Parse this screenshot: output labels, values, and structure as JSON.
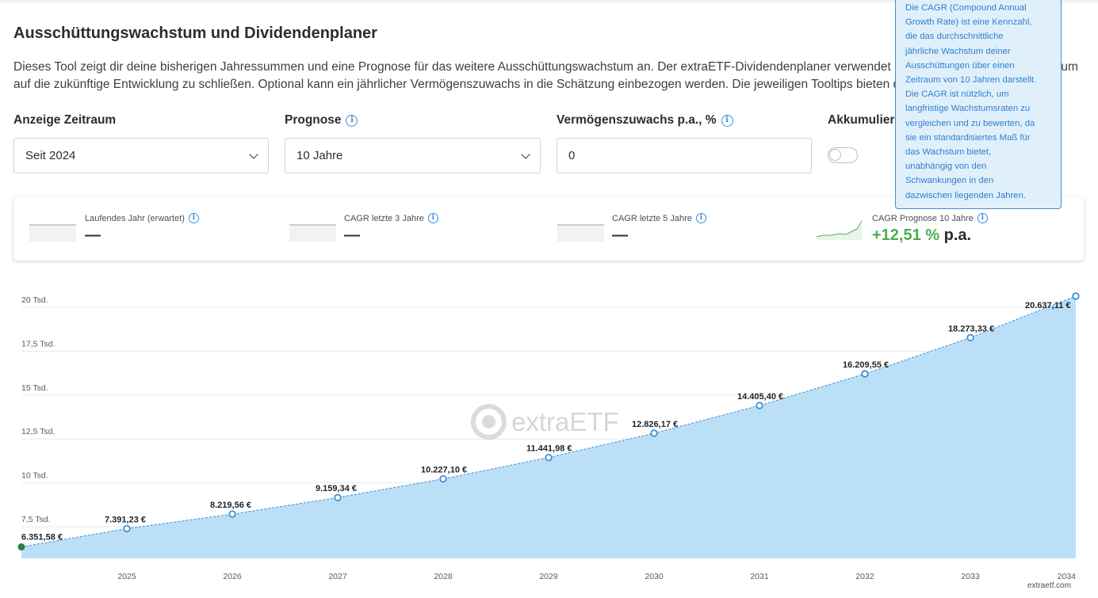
{
  "page": {
    "title": "Ausschüttungswachstum und Dividendenplaner",
    "intro_line1": "Dieses Tool zeigt dir deine bisherigen Jahressummen und eine Prognose für das weitere Ausschüttungswachstum an. Der extraETF-Dividendenplaner verwendet hierfür die historischen Daten, um",
    "intro_line2": "auf die zukünftige Entwicklung zu schließen. Optional kann ein jährlicher Vermögenszuwachs in die Schätzung einbezogen werden. Die jeweiligen Tooltips bieten dir weitere Informationen."
  },
  "controls": {
    "zeitraum_label": "Anzeige Zeitraum",
    "zeitraum_value": "Seit 2024",
    "prognose_label": "Prognose",
    "prognose_value": "10 Jahre",
    "zuwachs_label": "Vermögenszuwachs p.a., %",
    "zuwachs_value": "0",
    "akkumulieren_label": "Akkumulieren",
    "akkumulieren_on": false
  },
  "stats": [
    {
      "label": "Laufendes Jahr (erwartet)",
      "value": "—"
    },
    {
      "label": "CAGR letzte 3 Jahre",
      "value": "—"
    },
    {
      "label": "CAGR letzte 5 Jahre",
      "value": "—"
    },
    {
      "label": "CAGR Prognose 10 Jahre",
      "value_pct": "+12,51 %",
      "value_suffix": "p.a."
    }
  ],
  "tooltip": {
    "lines": [
      "Die CAGR (Compound Annual",
      "Growth Rate) ist eine Kennzahl,",
      "die das durchschnittliche",
      "jährliche Wachstum deiner",
      "Ausschüttungen über einen",
      "Zeitraum von 10 Jahren darstellt.",
      "Die CAGR ist nützlich, um",
      "langfristige Wachstumsraten zu",
      "vergleichen und zu bewerten, da",
      "sie ein standardisiertes Maß für",
      "das Wachstum bietet,",
      "unabhängig von den",
      "Schwankungen in den",
      "dazwischen liegenden Jahren."
    ]
  },
  "watermark": "extraETF",
  "credit": "extraetf.com",
  "colors": {
    "accent": "#3b8fd8",
    "area": "#bcdff8",
    "positive": "#4caf50",
    "start_point": "#2e7d4f"
  },
  "chart_data": {
    "type": "area",
    "x": [
      "2024",
      "2025",
      "2026",
      "2027",
      "2028",
      "2029",
      "2030",
      "2031",
      "2032",
      "2033",
      "2034"
    ],
    "xticks": [
      "2025",
      "2026",
      "2027",
      "2028",
      "2029",
      "2030",
      "2031",
      "2032",
      "2033",
      "2034"
    ],
    "values": [
      6351.58,
      7391.23,
      8219.56,
      9159.34,
      10227.1,
      11441.98,
      12826.17,
      14405.4,
      16209.55,
      18273.33,
      20637.11
    ],
    "labels": [
      "6.351,58 €",
      "7.391,23 €",
      "8.219,56 €",
      "9.159,34 €",
      "10.227,10 €",
      "11.441,98 €",
      "12.826,17 €",
      "14.405,40 €",
      "16.209,55 €",
      "18.273,33 €",
      "20.637,11 €"
    ],
    "yticks": [
      7500,
      10000,
      12500,
      15000,
      17500,
      20000
    ],
    "ytick_labels": [
      "7,5 Tsd.",
      "10 Tsd.",
      "12,5 Tsd.",
      "15 Tsd.",
      "17,5 Tsd.",
      "20 Tsd."
    ],
    "ylim": [
      5000,
      21000
    ],
    "grid": true,
    "legend": "none"
  }
}
